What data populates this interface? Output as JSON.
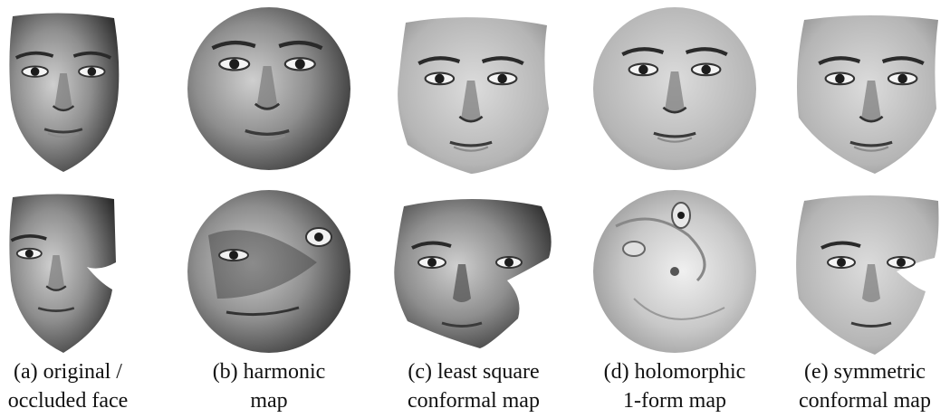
{
  "figure": {
    "captions": [
      {
        "line1": "(a) original /",
        "line2": "occluded face"
      },
      {
        "line1": "(b) harmonic",
        "line2": "map"
      },
      {
        "line1": "(c) least square",
        "line2": "conformal map"
      },
      {
        "line1": "(d) holomorphic",
        "line2": "1-form map"
      },
      {
        "line1": "(e) symmetric",
        "line2": "conformal map"
      }
    ]
  }
}
